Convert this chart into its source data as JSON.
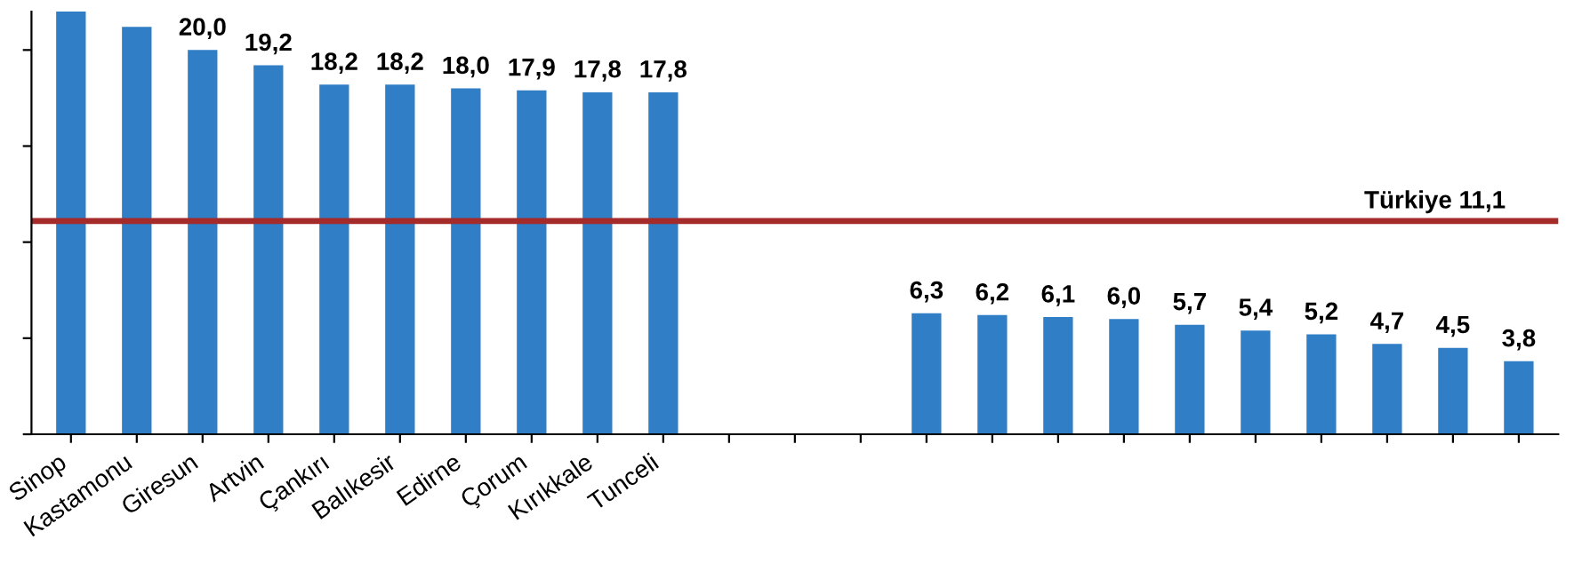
{
  "chart_data": {
    "type": "bar",
    "categories": [
      "Sinop",
      "Kastamonu",
      "Giresun",
      "Artvin",
      "Çankırı",
      "Balıkesir",
      "Edirne",
      "Çorum",
      "Kırıkkale",
      "Tunceli",
      null,
      null,
      null,
      null,
      null,
      null,
      null,
      null,
      null,
      null,
      null,
      null,
      null
    ],
    "values": [
      22.0,
      21.2,
      20.0,
      19.2,
      18.2,
      18.2,
      18.0,
      17.9,
      17.8,
      17.8,
      null,
      null,
      null,
      6.3,
      6.2,
      6.1,
      6.0,
      5.7,
      5.4,
      5.2,
      4.7,
      4.5,
      3.8
    ],
    "value_labels": [
      null,
      null,
      "20,0",
      "19,2",
      "18,2",
      "18,2",
      "18,0",
      "17,9",
      "17,8",
      "17,8",
      null,
      null,
      null,
      "6,3",
      "6,2",
      "6,1",
      "6,0",
      "5,7",
      "5,4",
      "5,2",
      "4,7",
      "4,5",
      "3,8"
    ],
    "color": "#2f7ec6",
    "ylim": [
      0,
      22
    ],
    "yticks": [
      {
        "value": 0,
        "label": null
      },
      {
        "value": 5,
        "label": null
      },
      {
        "value": 10,
        "label": null
      },
      {
        "value": 15,
        "label": null
      },
      {
        "value": 20,
        "label": null
      }
    ],
    "ref_lines": [
      {
        "axis": "y",
        "value": 11.1,
        "label": "Türkiye 11,1",
        "color": "#a52a2a"
      }
    ],
    "grid": false,
    "legend": false
  }
}
